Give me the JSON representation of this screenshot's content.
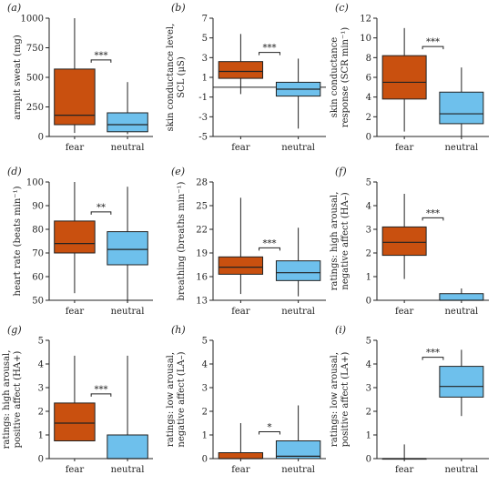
{
  "colors": {
    "fear": "#c9500f",
    "neutral": "#6ec0ec",
    "axis": "#222222"
  },
  "chart_data": [
    {
      "type": "boxplot",
      "panel": "(a)",
      "ylabel": [
        "armpit sweat (mg)"
      ],
      "ylim": [
        0,
        1000
      ],
      "yticks": [
        0,
        250,
        500,
        750,
        1000
      ],
      "categories": [
        "fear",
        "neutral"
      ],
      "boxes": [
        {
          "name": "fear",
          "min": 30,
          "q1": 100,
          "median": 180,
          "q3": 570,
          "max": 1000
        },
        {
          "name": "neutral",
          "min": 20,
          "q1": 40,
          "median": 100,
          "q3": 200,
          "max": 460
        }
      ],
      "significance": "***",
      "zero_line": false
    },
    {
      "type": "boxplot",
      "panel": "(b)",
      "ylabel": [
        "skin conductance level,",
        "SCL (μS)"
      ],
      "ylim": [
        -5,
        7
      ],
      "yticks": [
        -5,
        -3,
        -1,
        1,
        3,
        5,
        7
      ],
      "categories": [
        "fear",
        "neutral"
      ],
      "boxes": [
        {
          "name": "fear",
          "min": -0.7,
          "q1": 0.9,
          "median": 1.6,
          "q3": 2.6,
          "max": 5.4
        },
        {
          "name": "neutral",
          "min": -4.2,
          "q1": -0.9,
          "median": -0.2,
          "q3": 0.5,
          "max": 2.9
        }
      ],
      "significance": "***",
      "zero_line": true
    },
    {
      "type": "boxplot",
      "panel": "(c)",
      "ylabel": [
        "skin conductance",
        "response (SCR min⁻¹)"
      ],
      "ylim": [
        0,
        12
      ],
      "yticks": [
        0,
        2,
        4,
        6,
        8,
        10,
        12
      ],
      "categories": [
        "fear",
        "neutral"
      ],
      "boxes": [
        {
          "name": "fear",
          "min": 0.5,
          "q1": 3.8,
          "median": 5.5,
          "q3": 8.2,
          "max": 11
        },
        {
          "name": "neutral",
          "min": 0,
          "q1": 1.3,
          "median": 2.3,
          "q3": 4.5,
          "max": 7
        }
      ],
      "significance": "***",
      "zero_line": false
    },
    {
      "type": "boxplot",
      "panel": "(d)",
      "ylabel": [
        "heart rate (beats min⁻¹)"
      ],
      "ylim": [
        50,
        100
      ],
      "yticks": [
        50,
        60,
        70,
        80,
        90,
        100
      ],
      "categories": [
        "fear",
        "neutral"
      ],
      "boxes": [
        {
          "name": "fear",
          "min": 53,
          "q1": 70,
          "median": 74,
          "q3": 83.5,
          "max": 100
        },
        {
          "name": "neutral",
          "min": 49,
          "q1": 65,
          "median": 71.5,
          "q3": 79,
          "max": 98
        }
      ],
      "significance": "**",
      "zero_line": false
    },
    {
      "type": "boxplot",
      "panel": "(e)",
      "ylabel": [
        "breathing (breaths min⁻¹)"
      ],
      "ylim": [
        13,
        28
      ],
      "yticks": [
        13,
        16,
        19,
        22,
        25,
        28
      ],
      "categories": [
        "fear",
        "neutral"
      ],
      "boxes": [
        {
          "name": "fear",
          "min": 13.8,
          "q1": 16.3,
          "median": 17.2,
          "q3": 18.5,
          "max": 26
        },
        {
          "name": "neutral",
          "min": 13.5,
          "q1": 15.5,
          "median": 16.5,
          "q3": 18,
          "max": 22.2
        }
      ],
      "significance": "***",
      "zero_line": false
    },
    {
      "type": "boxplot",
      "panel": "(f)",
      "ylabel": [
        "ratings: high arousal,",
        "negative affect (HA–)"
      ],
      "ylim": [
        0,
        5
      ],
      "yticks": [
        0,
        1,
        2,
        3,
        4,
        5
      ],
      "categories": [
        "fear",
        "neutral"
      ],
      "boxes": [
        {
          "name": "fear",
          "min": 0.9,
          "q1": 1.9,
          "median": 2.45,
          "q3": 3.1,
          "max": 4.5
        },
        {
          "name": "neutral",
          "min": 0,
          "q1": 0,
          "median": 0,
          "q3": 0.28,
          "max": 0.5
        }
      ],
      "significance": "***",
      "zero_line": false
    },
    {
      "type": "boxplot",
      "panel": "(g)",
      "ylabel": [
        "ratings: high arousal,",
        "positive affect (HA+)"
      ],
      "ylim": [
        0,
        5
      ],
      "yticks": [
        0,
        1,
        2,
        3,
        4,
        5
      ],
      "categories": [
        "fear",
        "neutral"
      ],
      "boxes": [
        {
          "name": "fear",
          "min": 0.75,
          "q1": 0.75,
          "median": 1.5,
          "q3": 2.35,
          "max": 4.35
        },
        {
          "name": "neutral",
          "min": 0,
          "q1": 0,
          "median": 0,
          "q3": 1.0,
          "max": 4.35
        }
      ],
      "significance": "***",
      "zero_line": false
    },
    {
      "type": "boxplot",
      "panel": "(h)",
      "ylabel": [
        "ratings: low arousal,",
        "negative affect (LA–)"
      ],
      "ylim": [
        0,
        5
      ],
      "yticks": [
        0,
        1,
        2,
        3,
        4,
        5
      ],
      "categories": [
        "fear",
        "neutral"
      ],
      "boxes": [
        {
          "name": "fear",
          "min": 0,
          "q1": 0,
          "median": 0,
          "q3": 0.25,
          "max": 1.5
        },
        {
          "name": "neutral",
          "min": 0,
          "q1": 0,
          "median": 0.1,
          "q3": 0.75,
          "max": 2.25
        }
      ],
      "significance": "*",
      "zero_line": false
    },
    {
      "type": "boxplot",
      "panel": "(i)",
      "ylabel": [
        "ratings: low arousal,",
        "positive affect (LA+)"
      ],
      "ylim": [
        0,
        5
      ],
      "yticks": [
        0,
        1,
        2,
        3,
        4,
        5
      ],
      "categories": [
        "fear",
        "neutral"
      ],
      "boxes": [
        {
          "name": "fear",
          "min": 0,
          "q1": 0,
          "median": 0,
          "q3": 0,
          "max": 0.6
        },
        {
          "name": "neutral",
          "min": 1.8,
          "q1": 2.6,
          "median": 3.05,
          "q3": 3.9,
          "max": 4.6
        }
      ],
      "significance": "***",
      "zero_line": false
    }
  ]
}
